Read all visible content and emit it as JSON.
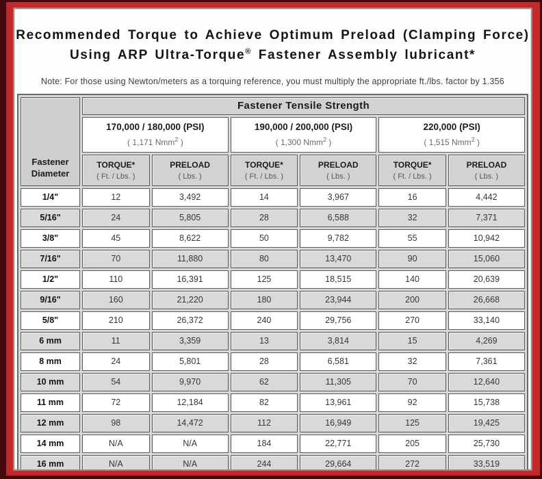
{
  "title": {
    "line1": "Recommended Torque to Achieve Optimum Preload (Clamping Force)",
    "line2_pre": "Using ARP Ultra-Torque",
    "line2_sup": "®",
    "line2_post": " Fastener Assembly lubricant*"
  },
  "note": "Note: For those using Newton/meters as a torquing reference, you must multiply the appropriate ft./lbs. factor by 1.356",
  "colors": {
    "frame_red": "#c2282c",
    "frame_maroon": "#42080b",
    "row_alt_gray": "#d9d9d9",
    "header_gray": "#d2d2d2",
    "cell_border": "#585858"
  },
  "table": {
    "corner_header": "Fastener Diameter",
    "tensile_header": "Fastener Tensile Strength",
    "groups": [
      {
        "psi": "170,000 / 180,000 (PSI)",
        "nmm_pre": "( 1,171 Nmm",
        "nmm_sup": "2",
        "nmm_post": " )"
      },
      {
        "psi": "190,000 / 200,000 (PSI)",
        "nmm_pre": "( 1,300 Nmm",
        "nmm_sup": "2",
        "nmm_post": " )"
      },
      {
        "psi": "220,000 (PSI)",
        "nmm_pre": "( 1,515 Nmm",
        "nmm_sup": "2",
        "nmm_post": " )"
      }
    ],
    "sub_headers": [
      {
        "label": "TORQUE*",
        "unit": "( Ft. / Lbs. )"
      },
      {
        "label": "PRELOAD",
        "unit": "( Lbs. )"
      },
      {
        "label": "TORQUE*",
        "unit": "( Ft. / Lbs. )"
      },
      {
        "label": "PRELOAD",
        "unit": "( Lbs. )"
      },
      {
        "label": "TORQUE*",
        "unit": "( Ft. / Lbs. )"
      },
      {
        "label": "PRELOAD",
        "unit": "( Lbs. )"
      }
    ],
    "rows": [
      {
        "diameter": "1/4\"",
        "values": [
          "12",
          "3,492",
          "14",
          "3,967",
          "16",
          "4,442"
        ]
      },
      {
        "diameter": "5/16\"",
        "values": [
          "24",
          "5,805",
          "28",
          "6,588",
          "32",
          "7,371"
        ]
      },
      {
        "diameter": "3/8\"",
        "values": [
          "45",
          "8,622",
          "50",
          "9,782",
          "55",
          "10,942"
        ]
      },
      {
        "diameter": "7/16\"",
        "values": [
          "70",
          "11,880",
          "80",
          "13,470",
          "90",
          "15,060"
        ]
      },
      {
        "diameter": "1/2\"",
        "values": [
          "110",
          "16,391",
          "125",
          "18,515",
          "140",
          "20,639"
        ]
      },
      {
        "diameter": "9/16\"",
        "values": [
          "160",
          "21,220",
          "180",
          "23,944",
          "200",
          "26,668"
        ]
      },
      {
        "diameter": "5/8\"",
        "values": [
          "210",
          "26,372",
          "240",
          "29,756",
          "270",
          "33,140"
        ]
      },
      {
        "diameter": "6 mm",
        "values": [
          "11",
          "3,359",
          "13",
          "3,814",
          "15",
          "4,269"
        ]
      },
      {
        "diameter": "8 mm",
        "values": [
          "24",
          "5,801",
          "28",
          "6,581",
          "32",
          "7,361"
        ]
      },
      {
        "diameter": "10 mm",
        "values": [
          "54",
          "9,970",
          "62",
          "11,305",
          "70",
          "12,640"
        ]
      },
      {
        "diameter": "11 mm",
        "values": [
          "72",
          "12,184",
          "82",
          "13,961",
          "92",
          "15,738"
        ]
      },
      {
        "diameter": "12 mm",
        "values": [
          "98",
          "14,472",
          "112",
          "16,949",
          "125",
          "19,425"
        ]
      },
      {
        "diameter": "14 mm",
        "values": [
          "N/A",
          "N/A",
          "184",
          "22,771",
          "205",
          "25,730"
        ]
      },
      {
        "diameter": "16 mm",
        "values": [
          "N/A",
          "N/A",
          "244",
          "29,664",
          "272",
          "33,519"
        ]
      }
    ]
  }
}
